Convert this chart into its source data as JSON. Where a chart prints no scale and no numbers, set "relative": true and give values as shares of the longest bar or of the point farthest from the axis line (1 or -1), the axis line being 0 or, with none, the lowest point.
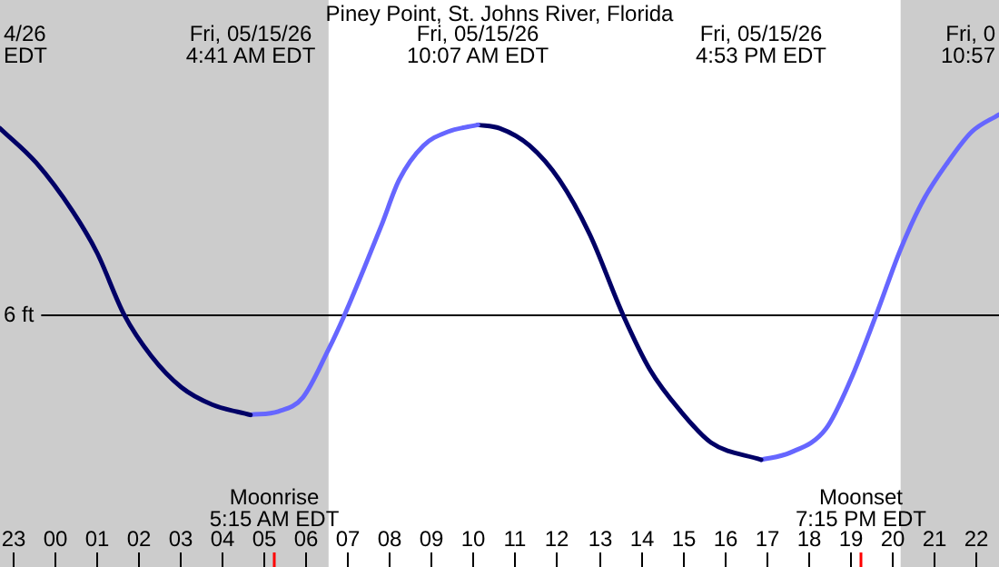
{
  "chart_data": {
    "type": "line",
    "title": "Piney Point, St. Johns River, Florida",
    "relative": true,
    "xlim": [
      "--05-14T22:42",
      "--05-15T22:34"
    ],
    "xticks": [
      {
        "value": "--05-14T23:00",
        "label": "23"
      },
      {
        "value": "--05-15T00:00",
        "label": "00"
      },
      {
        "value": "--05-15T01:00",
        "label": "01"
      },
      {
        "value": "--05-15T02:00",
        "label": "02"
      },
      {
        "value": "--05-15T03:00",
        "label": "03"
      },
      {
        "value": "--05-15T04:00",
        "label": "04"
      },
      {
        "value": "--05-15T05:00",
        "label": "05"
      },
      {
        "value": "--05-15T06:00",
        "label": "06"
      },
      {
        "value": "--05-15T07:00",
        "label": "07"
      },
      {
        "value": "--05-15T08:00",
        "label": "08"
      },
      {
        "value": "--05-15T09:00",
        "label": "09"
      },
      {
        "value": "--05-15T10:00",
        "label": "10"
      },
      {
        "value": "--05-15T11:00",
        "label": "11"
      },
      {
        "value": "--05-15T12:00",
        "label": "12"
      },
      {
        "value": "--05-15T13:00",
        "label": "13"
      },
      {
        "value": "--05-15T14:00",
        "label": "14"
      },
      {
        "value": "--05-15T15:00",
        "label": "15"
      },
      {
        "value": "--05-15T16:00",
        "label": "16"
      },
      {
        "value": "--05-15T17:00",
        "label": "17"
      },
      {
        "value": "--05-15T18:00",
        "label": "18"
      },
      {
        "value": "--05-15T19:00",
        "label": "19"
      },
      {
        "value": "--05-15T20:00",
        "label": "20"
      },
      {
        "value": "--05-15T21:00",
        "label": "21"
      },
      {
        "value": "--05-15T22:00",
        "label": "22"
      }
    ],
    "series": [
      {
        "color": "#000066",
        "x": [
          "--05-14T22:42",
          "--05-14T23:34",
          "--05-15T00:26",
          "--05-15T01:01",
          "--05-15T01:40",
          "--05-15T02:19",
          "--05-15T03:02",
          "--05-15T03:46",
          "--05-15T04:41"
        ],
        "values": [
          0.96,
          0.86,
          0.72,
          0.6,
          0.42,
          0.3,
          0.21,
          0.16,
          0.13
        ]
      },
      {
        "color": "#6666ff",
        "x": [
          "--05-15T04:41",
          "--05-15T05:21",
          "--05-15T05:56",
          "--05-15T06:33",
          "--05-15T06:56",
          "--05-15T07:23",
          "--05-15T07:49",
          "--05-15T08:14",
          "--05-15T08:49",
          "--05-15T09:24",
          "--05-15T10:07"
        ],
        "values": [
          0.13,
          0.14,
          0.18,
          0.32,
          0.42,
          0.55,
          0.68,
          0.81,
          0.91,
          0.95,
          0.97
        ]
      },
      {
        "color": "#000066",
        "x": [
          "--05-15T10:07",
          "--05-15T10:38",
          "--05-15T11:21",
          "--05-15T12:04",
          "--05-15T12:48",
          "--05-15T13:35",
          "--05-15T14:14",
          "--05-15T14:58",
          "--05-15T15:41",
          "--05-15T16:53"
        ],
        "values": [
          0.97,
          0.96,
          0.91,
          0.81,
          0.65,
          0.42,
          0.26,
          0.14,
          0.05,
          0
        ]
      },
      {
        "color": "#6666ff",
        "x": [
          "--05-15T16:53",
          "--05-15T17:34",
          "--05-15T18:26",
          "--05-15T19:01",
          "--05-15T19:38",
          "--05-15T20:13",
          "--05-15T20:45",
          "--05-15T21:20",
          "--05-15T21:55",
          "--05-15T22:34"
        ],
        "values": [
          0,
          0.02,
          0.09,
          0.23,
          0.42,
          0.61,
          0.75,
          0.86,
          0.95,
          1
        ]
      }
    ],
    "ref_lines": [
      {
        "axis": "y",
        "value": 0.42,
        "label": "6 ft",
        "color": "#000000"
      }
    ],
    "bands": [
      {
        "axis": "x",
        "from": "--05-14T22:42",
        "to": "--05-15T06:33",
        "color": "#cccccc"
      },
      {
        "axis": "x",
        "from": "--05-15T20:13",
        "to": "--05-15T22:34",
        "color": "#cccccc"
      }
    ],
    "annotations": [
      "4/26\nEDT",
      "Fri, 0\n10:57",
      "Fri, 05/15/26\n4:41 AM EDT",
      "Fri, 05/15/26\n10:07 AM EDT",
      "Fri, 05/15/26\n4:53 PM EDT",
      "Moonrise\n5:15 AM EDT",
      "Moonset\n7:15 PM EDT"
    ],
    "legend": false,
    "marker": "none",
    "line_style": "solid"
  }
}
